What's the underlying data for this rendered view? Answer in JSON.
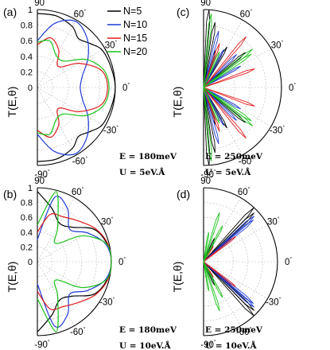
{
  "chart_data": [
    {
      "panel": "(a)",
      "type": "polar-line",
      "ylabel": "T(E,θ)",
      "r_ticks": [
        "0",
        "0.2",
        "0.4",
        "0.6",
        "0.8",
        "1"
      ],
      "angle_labels": [
        "90",
        "60",
        "30",
        "0",
        "-30",
        "-60",
        "-90"
      ],
      "params": [
        "E = 180meV",
        "U = 5eV.Å"
      ],
      "series": [
        {
          "name": "N=5",
          "color": "#000000",
          "points": [
            [
              -90,
              0.95
            ],
            [
              -75,
              0.95
            ],
            [
              -60,
              0.9
            ],
            [
              -50,
              0.82
            ],
            [
              -40,
              0.88
            ],
            [
              -30,
              0.96
            ],
            [
              -15,
              0.98
            ],
            [
              0,
              1.0
            ],
            [
              15,
              0.98
            ],
            [
              30,
              0.96
            ],
            [
              40,
              0.88
            ],
            [
              50,
              0.82
            ],
            [
              60,
              0.9
            ],
            [
              75,
              0.95
            ],
            [
              90,
              0.95
            ]
          ]
        },
        {
          "name": "N=10",
          "color": "#1f3bd6",
          "points": [
            [
              -90,
              0.6
            ],
            [
              -75,
              0.85
            ],
            [
              -60,
              0.98
            ],
            [
              -45,
              0.9
            ],
            [
              -30,
              0.75
            ],
            [
              -15,
              0.6
            ],
            [
              0,
              0.55
            ],
            [
              15,
              0.6
            ],
            [
              30,
              0.75
            ],
            [
              45,
              0.9
            ],
            [
              60,
              0.98
            ],
            [
              75,
              0.85
            ],
            [
              90,
              0.6
            ]
          ]
        },
        {
          "name": "N=15",
          "color": "#e01b1b",
          "points": [
            [
              -90,
              0.55
            ],
            [
              -75,
              0.66
            ],
            [
              -60,
              0.55
            ],
            [
              -45,
              0.38
            ],
            [
              -30,
              0.62
            ],
            [
              -15,
              0.85
            ],
            [
              0,
              0.9
            ],
            [
              15,
              0.85
            ],
            [
              30,
              0.62
            ],
            [
              45,
              0.38
            ],
            [
              60,
              0.55
            ],
            [
              75,
              0.66
            ],
            [
              90,
              0.55
            ]
          ]
        },
        {
          "name": "N=20",
          "color": "#1bc41b",
          "points": [
            [
              -90,
              0.58
            ],
            [
              -75,
              0.62
            ],
            [
              -60,
              0.48
            ],
            [
              -45,
              0.48
            ],
            [
              -30,
              0.72
            ],
            [
              -15,
              0.88
            ],
            [
              0,
              0.92
            ],
            [
              15,
              0.88
            ],
            [
              30,
              0.72
            ],
            [
              45,
              0.48
            ],
            [
              60,
              0.48
            ],
            [
              75,
              0.62
            ],
            [
              90,
              0.58
            ]
          ]
        }
      ]
    },
    {
      "panel": "(b)",
      "type": "polar-line",
      "ylabel": "T(E,θ)",
      "r_ticks": [
        "0",
        "0.2",
        "0.4",
        "0.6",
        "0.8",
        "1"
      ],
      "angle_labels": [
        "90",
        "60",
        "30",
        "0",
        "-30",
        "-60",
        "-90"
      ],
      "params": [
        "E = 180meV",
        "U = 10eV.Å"
      ],
      "series": [
        {
          "name": "N=5",
          "color": "#000000",
          "points": [
            [
              -90,
              0.95
            ],
            [
              -75,
              0.75
            ],
            [
              -60,
              0.6
            ],
            [
              -45,
              0.66
            ],
            [
              -30,
              0.88
            ],
            [
              -15,
              0.97
            ],
            [
              0,
              1.0
            ],
            [
              15,
              0.97
            ],
            [
              30,
              0.88
            ],
            [
              45,
              0.66
            ],
            [
              60,
              0.6
            ],
            [
              75,
              0.75
            ],
            [
              90,
              0.95
            ]
          ]
        },
        {
          "name": "N=10",
          "color": "#1f3bd6",
          "points": [
            [
              -90,
              0.3
            ],
            [
              -75,
              0.9
            ],
            [
              -60,
              0.82
            ],
            [
              -45,
              0.62
            ],
            [
              -30,
              0.78
            ],
            [
              -15,
              0.95
            ],
            [
              0,
              1.0
            ],
            [
              15,
              0.95
            ],
            [
              30,
              0.78
            ],
            [
              45,
              0.62
            ],
            [
              60,
              0.82
            ],
            [
              75,
              0.9
            ],
            [
              90,
              0.3
            ]
          ]
        },
        {
          "name": "N=15",
          "color": "#e01b1b",
          "points": [
            [
              -90,
              0.4
            ],
            [
              -75,
              0.66
            ],
            [
              -60,
              0.7
            ],
            [
              -45,
              0.78
            ],
            [
              -30,
              0.9
            ],
            [
              -15,
              0.98
            ],
            [
              0,
              1.0
            ],
            [
              15,
              0.98
            ],
            [
              30,
              0.9
            ],
            [
              45,
              0.78
            ],
            [
              60,
              0.7
            ],
            [
              75,
              0.66
            ],
            [
              90,
              0.4
            ]
          ]
        },
        {
          "name": "N=20",
          "color": "#1bc41b",
          "points": [
            [
              -90,
              0.5
            ],
            [
              -75,
              0.98
            ],
            [
              -60,
              0.55
            ],
            [
              -45,
              0.35
            ],
            [
              -30,
              0.7
            ],
            [
              -15,
              0.96
            ],
            [
              0,
              1.0
            ],
            [
              15,
              0.96
            ],
            [
              30,
              0.7
            ],
            [
              45,
              0.35
            ],
            [
              60,
              0.55
            ],
            [
              75,
              0.98
            ],
            [
              90,
              0.5
            ]
          ]
        }
      ]
    },
    {
      "panel": "(c)",
      "type": "polar-spikes",
      "ylabel": "T(E,θ)",
      "angle_labels": [
        "90",
        "60",
        "30",
        "0",
        "-30",
        "-60",
        "-90"
      ],
      "params": [
        "E = 250meV",
        "U = 5eV.Å"
      ],
      "series": [
        {
          "name": "N=5",
          "color": "#000000",
          "spikes": [
            [
              86,
              1.0
            ],
            [
              80,
              0.85
            ],
            [
              72,
              0.5
            ],
            [
              60,
              0.6
            ],
            [
              40,
              0.7
            ],
            [
              -40,
              0.7
            ],
            [
              -60,
              0.6
            ],
            [
              -72,
              0.5
            ],
            [
              -80,
              0.85
            ],
            [
              -86,
              1.0
            ]
          ]
        },
        {
          "name": "N=10",
          "color": "#1f3bd6",
          "spikes": [
            [
              75,
              0.75
            ],
            [
              62,
              0.55
            ],
            [
              45,
              0.6
            ],
            [
              30,
              0.55
            ],
            [
              -30,
              0.55
            ],
            [
              -45,
              0.6
            ],
            [
              -62,
              0.55
            ],
            [
              -75,
              0.75
            ]
          ]
        },
        {
          "name": "N=15",
          "color": "#e01b1b",
          "spikes": [
            [
              70,
              0.6
            ],
            [
              50,
              0.85
            ],
            [
              20,
              0.7
            ],
            [
              -20,
              0.7
            ],
            [
              -50,
              0.85
            ],
            [
              -70,
              0.6
            ]
          ]
        },
        {
          "name": "N=20",
          "color": "#1bc41b",
          "spikes": [
            [
              84,
              0.95
            ],
            [
              66,
              0.5
            ],
            [
              38,
              0.8
            ],
            [
              35,
              0.75
            ],
            [
              -35,
              0.75
            ],
            [
              -38,
              0.8
            ],
            [
              -66,
              0.5
            ],
            [
              -84,
              0.95
            ]
          ]
        }
      ]
    },
    {
      "panel": "(d)",
      "type": "polar-spikes",
      "ylabel": "T(E,θ)",
      "angle_labels": [
        "90",
        "60",
        "30",
        "0",
        "-30",
        "-60",
        "-90"
      ],
      "params": [
        "E = 250meV",
        "U = 10eV.Å"
      ],
      "series": [
        {
          "name": "N=5",
          "color": "#000000",
          "spikes": [
            [
              47,
              1.0
            ],
            [
              44,
              0.95
            ],
            [
              -44,
              0.95
            ],
            [
              -47,
              1.0
            ],
            [
              65,
              0.35
            ],
            [
              -65,
              0.35
            ]
          ]
        },
        {
          "name": "N=10",
          "color": "#1f3bd6",
          "spikes": [
            [
              42,
              0.92
            ],
            [
              40,
              0.88
            ],
            [
              -40,
              0.88
            ],
            [
              -42,
              0.92
            ],
            [
              62,
              0.3
            ],
            [
              -62,
              0.3
            ]
          ]
        },
        {
          "name": "N=15",
          "color": "#e01b1b",
          "spikes": [
            [
              38,
              0.55
            ],
            [
              -38,
              0.55
            ],
            [
              58,
              0.25
            ],
            [
              -58,
              0.25
            ]
          ]
        },
        {
          "name": "N=20",
          "color": "#1bc41b",
          "spikes": [
            [
              72,
              0.7
            ],
            [
              62,
              0.55
            ],
            [
              -62,
              0.55
            ],
            [
              -72,
              0.7
            ],
            [
              80,
              0.4
            ],
            [
              -80,
              0.4
            ]
          ]
        }
      ]
    }
  ],
  "legend": [
    "N=5",
    "N=10",
    "N=15",
    "N=20"
  ]
}
